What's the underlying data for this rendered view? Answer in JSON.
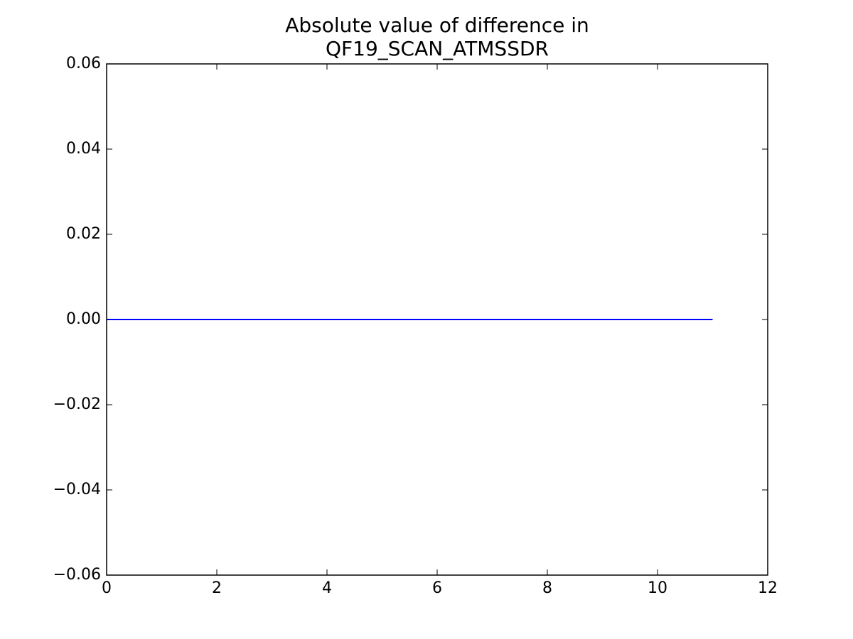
{
  "chart_data": {
    "type": "line",
    "title": [
      "Absolute value of difference in",
      "QF19_SCAN_ATMSSDR"
    ],
    "x": [
      0,
      1,
      2,
      3,
      4,
      5,
      6,
      7,
      8,
      9,
      10,
      11
    ],
    "series": [
      {
        "color": "#0000ff",
        "values": [
          0,
          0,
          0,
          0,
          0,
          0,
          0,
          0,
          0,
          0,
          0,
          0
        ]
      }
    ],
    "xlim": [
      0,
      12
    ],
    "xticks": [
      0,
      2,
      4,
      6,
      8,
      10,
      12
    ],
    "ylim": [
      -0.06,
      0.06
    ],
    "yticks": [
      {
        "value": -0.06,
        "label": "−0.06"
      },
      {
        "value": -0.04,
        "label": "−0.04"
      },
      {
        "value": -0.02,
        "label": "−0.02"
      },
      {
        "value": 0,
        "label": "0.00"
      },
      0.02,
      0.04,
      0.06
    ],
    "grid": false
  }
}
